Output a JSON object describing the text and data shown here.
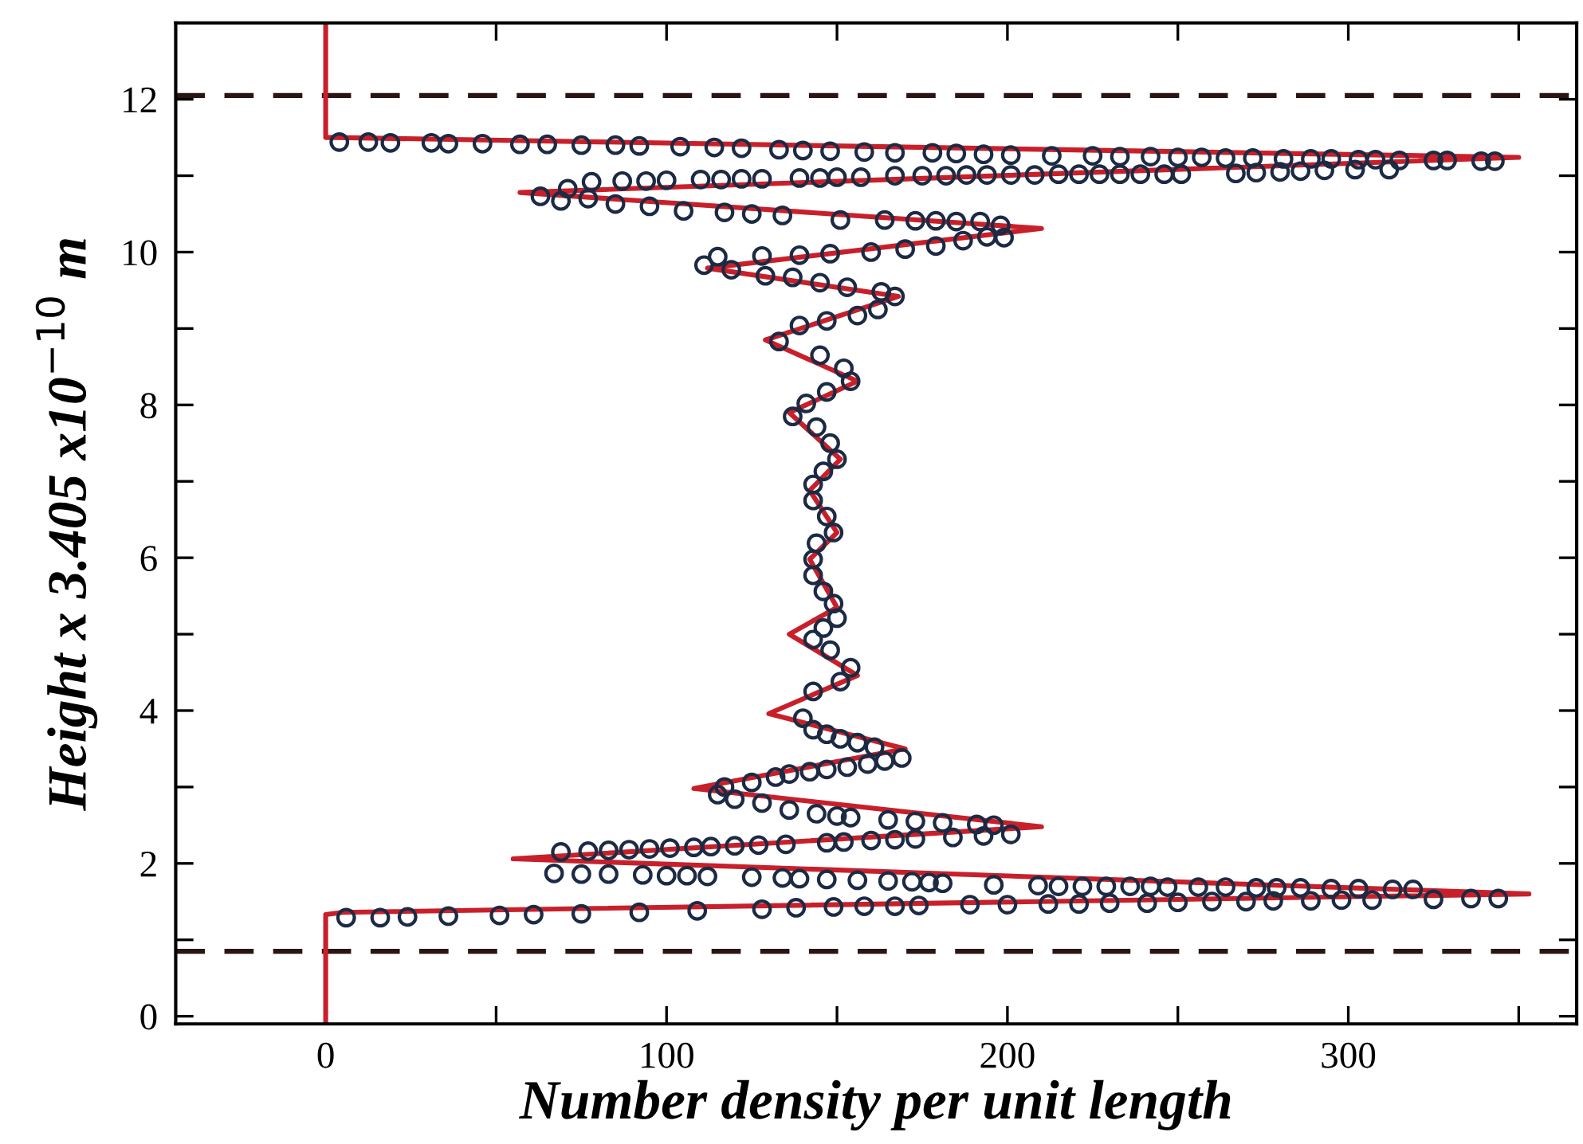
{
  "chart_data": {
    "type": "line",
    "xlabel": "Number density per unit length",
    "ylabel": "Height x 3.405 x10$^{−10}$ m",
    "xlim": [
      -44,
      367
    ],
    "ylim": [
      -0.1,
      13
    ],
    "xticks": [
      0,
      100,
      200,
      300,
      {
        "value": 50,
        "label": null
      },
      {
        "value": 150,
        "label": null
      },
      {
        "value": 250,
        "label": null
      },
      {
        "value": 350,
        "label": null
      }
    ],
    "yticks": [
      0,
      2,
      4,
      6,
      8,
      10,
      12,
      {
        "value": 1,
        "label": null
      },
      {
        "value": 3,
        "label": null
      },
      {
        "value": 5,
        "label": null
      },
      {
        "value": 7,
        "label": null
      },
      {
        "value": 9,
        "label": null
      },
      {
        "value": 11,
        "label": null
      }
    ],
    "ref_lines": [
      {
        "axis": "y",
        "value": 12.05,
        "color": "#2a1414",
        "line_style": "dashed"
      },
      {
        "axis": "y",
        "value": 0.85,
        "color": "#2a1414",
        "line_style": "dashed"
      }
    ],
    "series": [
      {
        "color": "#c8202a",
        "marker": "none",
        "line_style": "solid",
        "x": [
          0,
          0,
          5,
          353,
          55,
          210,
          108,
          170,
          130,
          156,
          136,
          150,
          142,
          150,
          142,
          151,
          136,
          156,
          129,
          168,
          112,
          210,
          57,
          350,
          3,
          0,
          0
        ],
        "values": [
          -0.1,
          1.33,
          1.36,
          1.6,
          2.06,
          2.48,
          2.98,
          3.5,
          3.96,
          4.46,
          5.0,
          5.35,
          5.98,
          6.33,
          6.88,
          7.29,
          7.9,
          8.31,
          8.85,
          9.42,
          9.79,
          10.31,
          10.78,
          11.24,
          11.5,
          11.5,
          13
        ]
      },
      {
        "type": "scatter",
        "color": "#1c2a44",
        "marker": "circle",
        "x": [
          6,
          16,
          24,
          36,
          51,
          61,
          75,
          92,
          109,
          128,
          138,
          149,
          158,
          167,
          174,
          189,
          200,
          212,
          221,
          230,
          241,
          250,
          260,
          270,
          278,
          289,
          298,
          307,
          325,
          336,
          344,
          319,
          313,
          303,
          295,
          286,
          279,
          273,
          264,
          256,
          247,
          242,
          236,
          229,
          222,
          215,
          209,
          196,
          181,
          177,
          172,
          165,
          156,
          147,
          139,
          134,
          125,
          112,
          106,
          100,
          93,
          83,
          75,
          67,
          69,
          77,
          83,
          89,
          95,
          101,
          108,
          113,
          120,
          127,
          135,
          147,
          152,
          160,
          167,
          173,
          184,
          193,
          201,
          196,
          191,
          181,
          173,
          165,
          154,
          150,
          144,
          136,
          128,
          120,
          115,
          117,
          125,
          132,
          136,
          142,
          147,
          153,
          159,
          164,
          169,
          161,
          156,
          151,
          147,
          143,
          140,
          143,
          151,
          154,
          148,
          143,
          146,
          150,
          149,
          146,
          143,
          143,
          144,
          149,
          147,
          143,
          143,
          146,
          150,
          148,
          144,
          137,
          141,
          147,
          154,
          152,
          145,
          133,
          139,
          147,
          156,
          162,
          167,
          163,
          153,
          145,
          137,
          129,
          119,
          111,
          115,
          128,
          139,
          148,
          160,
          170,
          179,
          187,
          194,
          199,
          198,
          192,
          185,
          179,
          173,
          164,
          151,
          134,
          125,
          117,
          105,
          95,
          85,
          77,
          69,
          63,
          71,
          78,
          87,
          94,
          100,
          110,
          116,
          122,
          128,
          139,
          145,
          150,
          157,
          167,
          175,
          182,
          188,
          194,
          201,
          208,
          215,
          221,
          227,
          233,
          239,
          246,
          251,
          267,
          273,
          280,
          286,
          293,
          302,
          312,
          343,
          339,
          329,
          325,
          315,
          308,
          303,
          295,
          289,
          281,
          272,
          264,
          257,
          250,
          242,
          233,
          225,
          213,
          201,
          193,
          185,
          178,
          167,
          158,
          148,
          140,
          133,
          122,
          114,
          104,
          92,
          85,
          75,
          65,
          57,
          46,
          36,
          31,
          19,
          12.5,
          4
        ],
        "values": [
          1.29,
          1.29,
          1.3,
          1.31,
          1.32,
          1.33,
          1.34,
          1.36,
          1.38,
          1.4,
          1.42,
          1.43,
          1.44,
          1.44,
          1.45,
          1.46,
          1.46,
          1.47,
          1.47,
          1.48,
          1.48,
          1.49,
          1.5,
          1.5,
          1.51,
          1.51,
          1.52,
          1.52,
          1.53,
          1.54,
          1.54,
          1.66,
          1.66,
          1.67,
          1.67,
          1.68,
          1.68,
          1.68,
          1.69,
          1.69,
          1.69,
          1.7,
          1.7,
          1.7,
          1.7,
          1.7,
          1.71,
          1.72,
          1.74,
          1.75,
          1.76,
          1.77,
          1.78,
          1.79,
          1.8,
          1.81,
          1.82,
          1.83,
          1.84,
          1.84,
          1.85,
          1.86,
          1.86,
          1.87,
          2.15,
          2.16,
          2.17,
          2.18,
          2.19,
          2.2,
          2.21,
          2.22,
          2.23,
          2.24,
          2.25,
          2.27,
          2.28,
          2.3,
          2.31,
          2.32,
          2.34,
          2.36,
          2.38,
          2.5,
          2.51,
          2.53,
          2.55,
          2.57,
          2.6,
          2.62,
          2.65,
          2.7,
          2.79,
          2.84,
          2.9,
          3.0,
          3.06,
          3.13,
          3.17,
          3.2,
          3.23,
          3.26,
          3.3,
          3.34,
          3.38,
          3.52,
          3.58,
          3.63,
          3.69,
          3.75,
          3.9,
          4.25,
          4.38,
          4.56,
          4.79,
          4.93,
          5.08,
          5.21,
          5.4,
          5.56,
          5.77,
          5.98,
          6.19,
          6.33,
          6.54,
          6.75,
          6.96,
          7.13,
          7.29,
          7.5,
          7.71,
          7.85,
          8.02,
          8.17,
          8.31,
          8.48,
          8.65,
          8.83,
          9.04,
          9.1,
          9.17,
          9.25,
          9.42,
          9.48,
          9.54,
          9.6,
          9.67,
          9.69,
          9.77,
          9.83,
          9.94,
          9.95,
          9.96,
          9.98,
          10.0,
          10.04,
          10.08,
          10.15,
          10.2,
          10.19,
          10.35,
          10.4,
          10.4,
          10.41,
          10.41,
          10.42,
          10.42,
          10.48,
          10.5,
          10.52,
          10.54,
          10.6,
          10.63,
          10.7,
          10.67,
          10.73,
          10.83,
          10.92,
          10.93,
          10.93,
          10.94,
          10.95,
          10.95,
          10.96,
          10.96,
          10.97,
          10.97,
          10.98,
          10.98,
          11.0,
          11.0,
          11.0,
          11.01,
          11.01,
          11.01,
          11.01,
          11.02,
          11.02,
          11.02,
          11.02,
          11.02,
          11.02,
          11.02,
          11.03,
          11.04,
          11.05,
          11.06,
          11.07,
          11.08,
          11.08,
          11.19,
          11.19,
          11.2,
          11.2,
          11.2,
          11.21,
          11.21,
          11.22,
          11.22,
          11.22,
          11.23,
          11.23,
          11.24,
          11.24,
          11.25,
          11.25,
          11.26,
          11.26,
          11.27,
          11.28,
          11.29,
          11.3,
          11.3,
          11.31,
          11.32,
          11.33,
          11.34,
          11.36,
          11.37,
          11.38,
          11.39,
          11.4,
          11.4,
          11.41,
          11.41,
          11.42,
          11.42,
          11.43,
          11.43,
          11.44,
          11.44
        ]
      }
    ]
  }
}
